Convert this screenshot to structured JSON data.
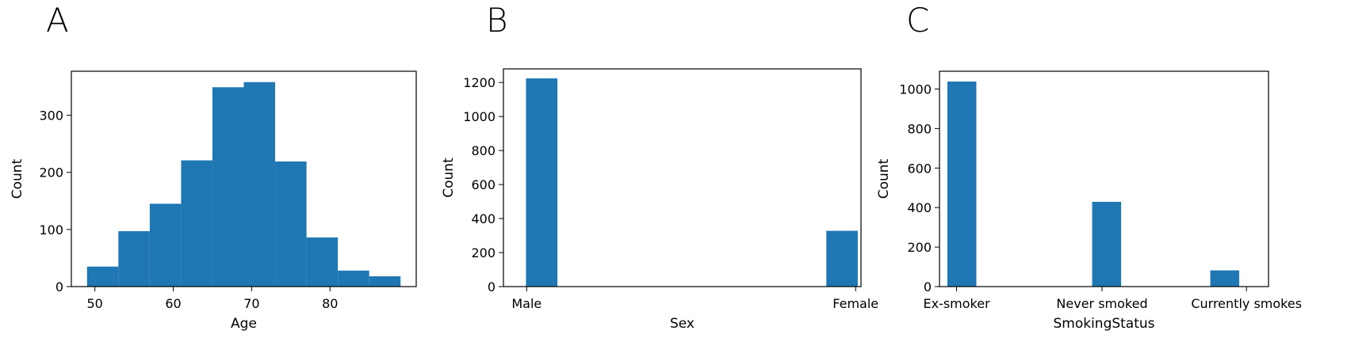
{
  "chart_data": [
    {
      "panel": "A",
      "type": "bar",
      "xlabel": "Age",
      "ylabel": "Count",
      "bin_edges": [
        49,
        53,
        57,
        61,
        65,
        69,
        73,
        77,
        81,
        85,
        89
      ],
      "values": [
        35,
        97,
        145,
        221,
        349,
        358,
        219,
        86,
        28,
        18
      ],
      "xticks": [
        50,
        60,
        70,
        80
      ],
      "yticks": [
        0,
        100,
        200,
        300
      ],
      "xlim": [
        47,
        91
      ],
      "ylim": [
        0,
        377
      ],
      "color": "#1f77b4"
    },
    {
      "panel": "B",
      "type": "bar",
      "xlabel": "Sex",
      "ylabel": "Count",
      "categories": [
        "Male",
        "Female"
      ],
      "values": [
        1224,
        328
      ],
      "yticks": [
        0,
        200,
        400,
        600,
        800,
        1000,
        1200
      ],
      "ylim": [
        0,
        1280
      ],
      "color": "#1f77b4"
    },
    {
      "panel": "C",
      "type": "bar",
      "xlabel": "SmokingStatus",
      "ylabel": "Count",
      "categories": [
        "Ex-smoker",
        "Never smoked",
        "Currently smokes"
      ],
      "values": [
        1038,
        429,
        82
      ],
      "yticks": [
        0,
        200,
        400,
        600,
        800,
        1000
      ],
      "ylim": [
        0,
        1090
      ],
      "color": "#1f77b4"
    }
  ]
}
